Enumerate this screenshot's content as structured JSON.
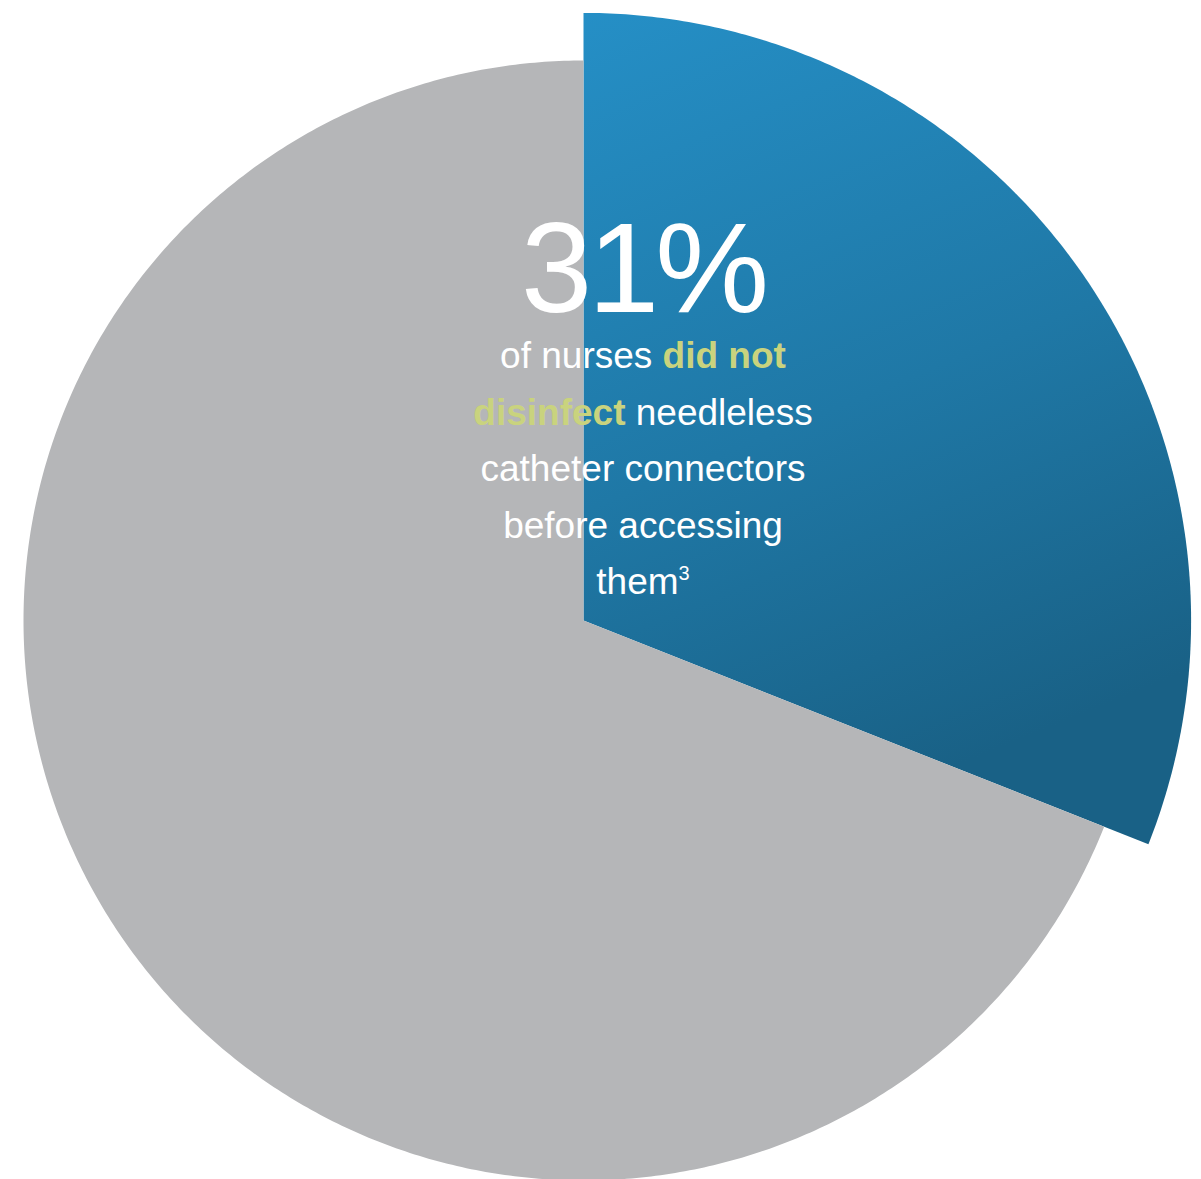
{
  "chart_data": {
    "type": "pie",
    "values": [
      31,
      69
    ],
    "value_labels": [
      "31%",
      null
    ],
    "colors": [
      "#1f78a6",
      "#b5b6b8"
    ],
    "data_labels": true,
    "annotation": {
      "lines": [
        "of nurses did not",
        "disinfect needleless",
        "catheter connectors",
        "before accessing",
        "them"
      ],
      "highlight": "did not disinfect",
      "footnote": "3"
    }
  }
}
